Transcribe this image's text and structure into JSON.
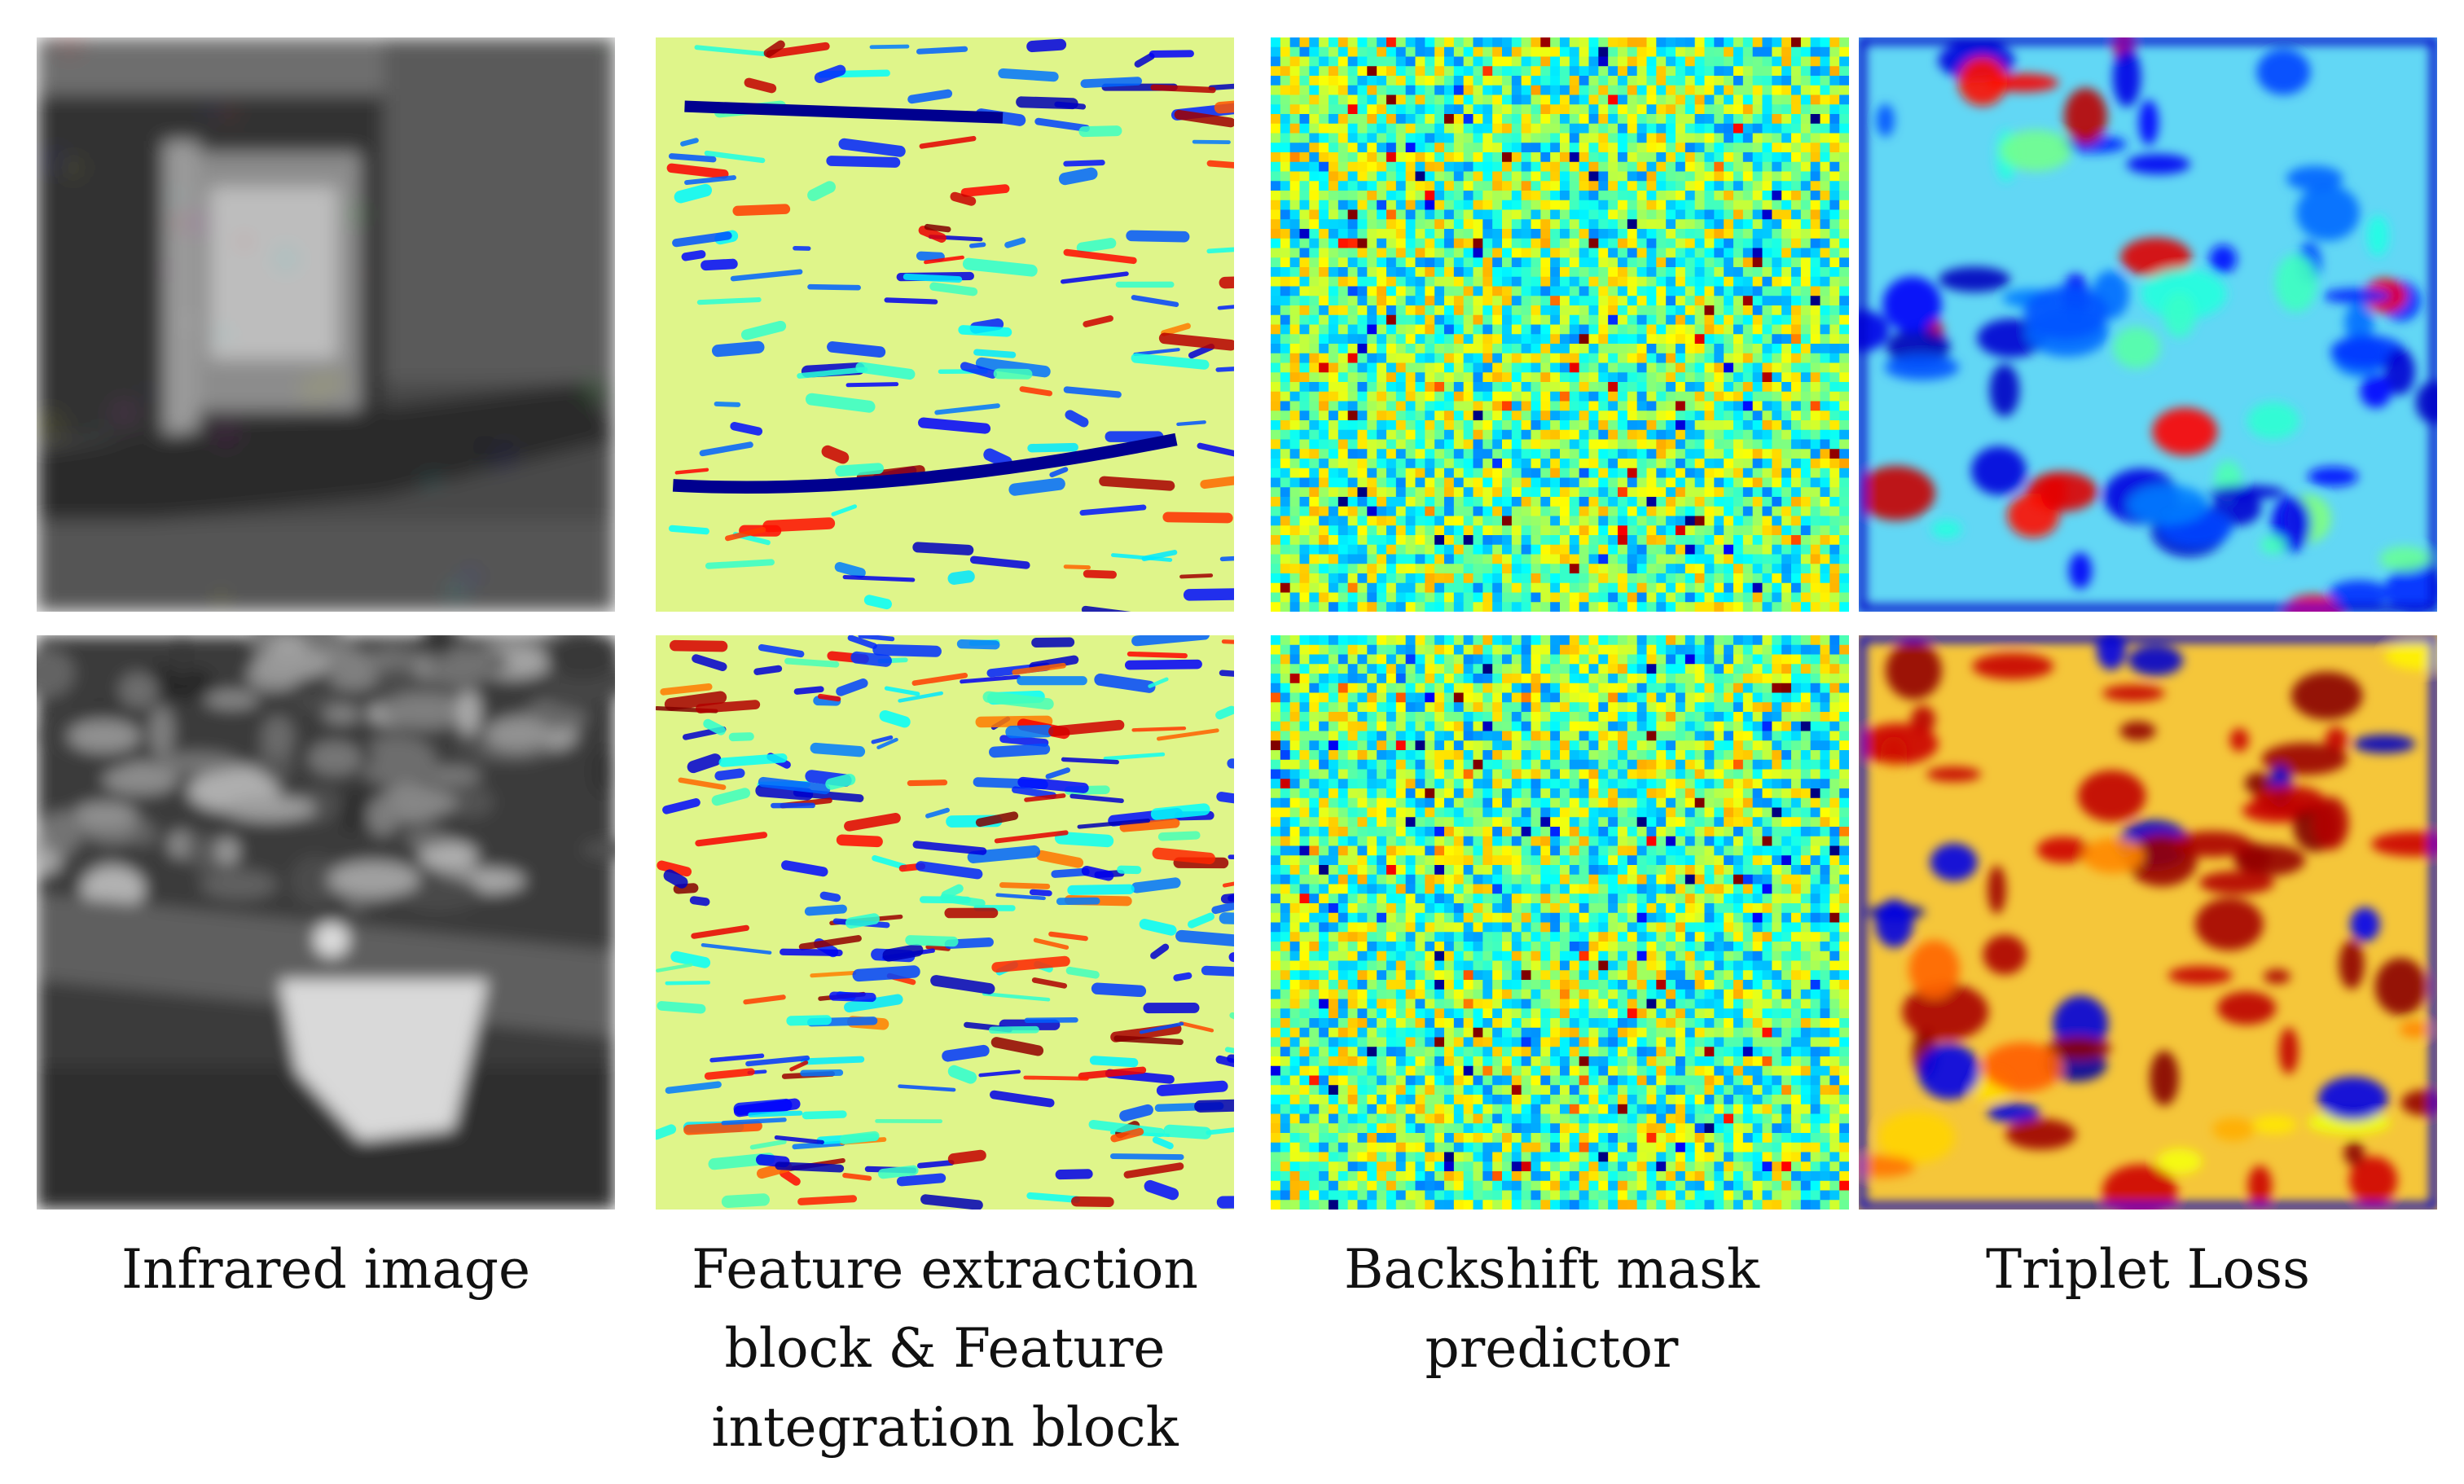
{
  "colors": {
    "jet_low": "#0000c8",
    "jet_mid": "#d8f58c",
    "jet_high": "#d80000",
    "gray_dark": "#2a2a2a",
    "gray_light": "#bdbdbd"
  },
  "columns": [
    {
      "caption": "Infrared image"
    },
    {
      "caption": "Feature extraction block & Feature integration block"
    },
    {
      "caption": "Backshift mask predictor"
    },
    {
      "caption": "Triplet Loss"
    }
  ],
  "rows": 2
}
